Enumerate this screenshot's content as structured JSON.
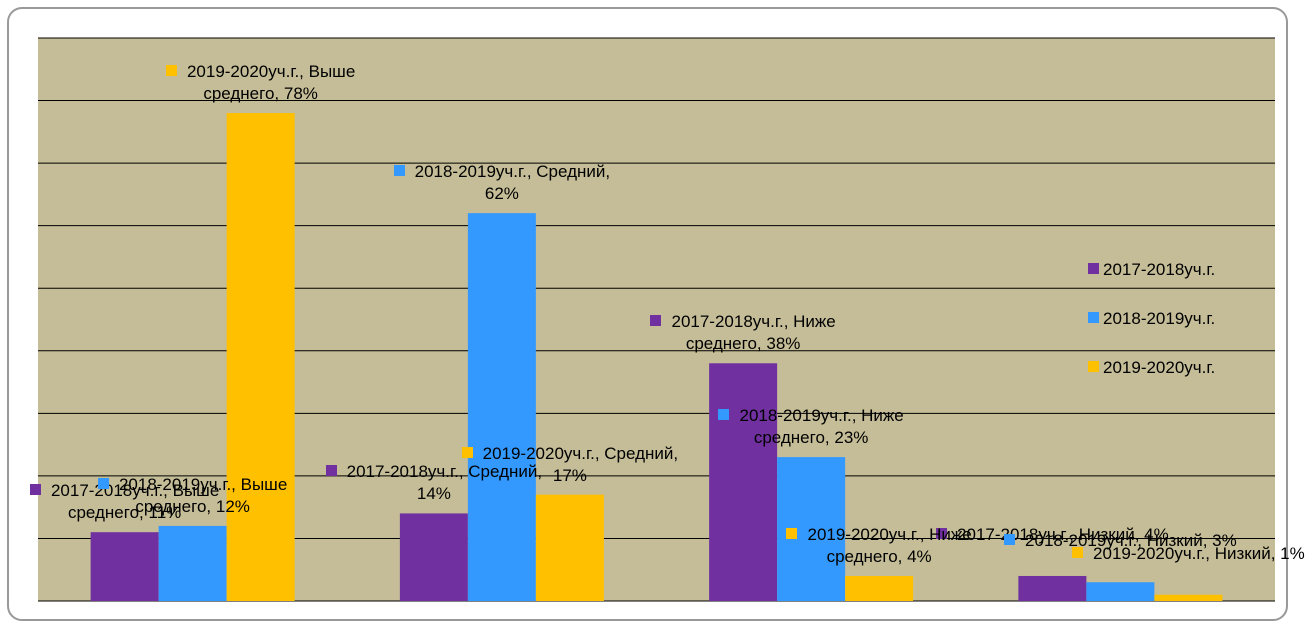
{
  "chart_data": {
    "type": "bar",
    "categories": [
      null,
      null,
      null,
      null
    ],
    "series": [
      {
        "name": "2017-2018уч.г.",
        "color": "#7030a0",
        "values": [
          11,
          14,
          38,
          4
        ],
        "value_labels": [
          "2017-2018уч.г., Выше среднего, 11%",
          "2017-2018уч.г., Средний, 14%",
          "2017-2018уч.г., Ниже среднего, 38%",
          "2017-2018уч.г., Низкий, 4%"
        ]
      },
      {
        "name": "2018-2019уч.г.",
        "color": "#3399ff",
        "values": [
          12,
          62,
          23,
          3
        ],
        "value_labels": [
          "2018-2019уч.г., Выше среднего, 12%",
          "2018-2019уч.г., Средний, 62%",
          "2018-2019уч.г., Ниже среднего, 23%",
          "2018-2019уч.г., Низкий, 3%"
        ]
      },
      {
        "name": "2019-2020уч.г.",
        "color": "#ffc000",
        "values": [
          78,
          17,
          4,
          1
        ],
        "value_labels": [
          "2019-2020уч.г., Выше среднего, 78%",
          "2019-2020уч.г., Средний, 17%",
          "2019-2020уч.г., Ниже среднего, 4%",
          "2019-2020уч.г., Низкий, 1%"
        ]
      }
    ],
    "ylim": [
      0,
      90
    ],
    "yticks": [
      0,
      10,
      20,
      30,
      40,
      50,
      60,
      70,
      80,
      90
    ],
    "grid": true,
    "legend": "right"
  }
}
